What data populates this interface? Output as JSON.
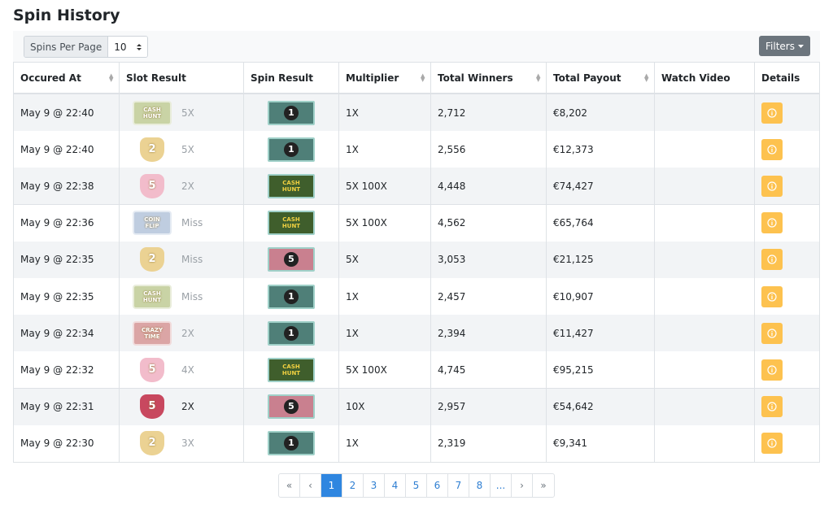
{
  "title": "Spin History",
  "toolbar": {
    "per_page_label": "Spins Per Page",
    "per_page_value": "10",
    "filters": "Filters"
  },
  "table": {
    "headers": [
      {
        "label": "Occured At",
        "sortable": true
      },
      {
        "label": "Slot Result",
        "sortable": false
      },
      {
        "label": "Spin Result",
        "sortable": false
      },
      {
        "label": "Multiplier",
        "sortable": true
      },
      {
        "label": "Total Winners",
        "sortable": true
      },
      {
        "label": "Total Payout",
        "sortable": true
      },
      {
        "label": "Watch Video",
        "sortable": false
      },
      {
        "label": "Details",
        "sortable": false
      }
    ],
    "rows": [
      {
        "occurred_at": "May 9 @ 22:40",
        "slot": "CASH HUNT",
        "slot_shape": "ticket",
        "slot_color": "#c9d3a5",
        "slot_multiplier": "5X",
        "slot_hit": false,
        "spin_result": "1",
        "spin_color": "#4f7f78",
        "multiplier": "1X",
        "total_winners": "2,712",
        "total_payout": "€8,202"
      },
      {
        "occurred_at": "May 9 @ 22:40",
        "slot": "2",
        "slot_shape": "shield",
        "slot_color": "#ebd293",
        "slot_multiplier": "5X",
        "slot_hit": false,
        "spin_result": "1",
        "spin_color": "#4f7f78",
        "multiplier": "1X",
        "total_winners": "2,556",
        "total_payout": "€12,373"
      },
      {
        "occurred_at": "May 9 @ 22:38",
        "slot": "5",
        "slot_shape": "shield",
        "slot_color": "#f2bccb",
        "slot_multiplier": "2X",
        "slot_hit": false,
        "spin_result": "CASH HUNT",
        "spin_color": "#3f5e2c",
        "multiplier": "5X 100X",
        "total_winners": "4,448",
        "total_payout": "€74,427"
      },
      {
        "occurred_at": "May 9 @ 22:36",
        "slot": "COIN FLIP",
        "slot_shape": "ticket",
        "slot_color": "#bfcde0",
        "slot_multiplier": "Miss",
        "slot_hit": false,
        "spin_result": "CASH HUNT",
        "spin_color": "#3f5e2c",
        "multiplier": "5X 100X",
        "total_winners": "4,562",
        "total_payout": "€65,764"
      },
      {
        "occurred_at": "May 9 @ 22:35",
        "slot": "2",
        "slot_shape": "shield",
        "slot_color": "#ebd293",
        "slot_multiplier": "Miss",
        "slot_hit": false,
        "spin_result": "5",
        "spin_color": "#c9808f",
        "multiplier": "5X",
        "total_winners": "3,053",
        "total_payout": "€21,125"
      },
      {
        "occurred_at": "May 9 @ 22:35",
        "slot": "CASH HUNT",
        "slot_shape": "ticket",
        "slot_color": "#c9d3a5",
        "slot_multiplier": "Miss",
        "slot_hit": false,
        "spin_result": "1",
        "spin_color": "#4f7f78",
        "multiplier": "1X",
        "total_winners": "2,457",
        "total_payout": "€10,907"
      },
      {
        "occurred_at": "May 9 @ 22:34",
        "slot": "CRAZY TIME",
        "slot_shape": "ticket",
        "slot_color": "#dba5a5",
        "slot_multiplier": "2X",
        "slot_hit": false,
        "spin_result": "1",
        "spin_color": "#4f7f78",
        "multiplier": "1X",
        "total_winners": "2,394",
        "total_payout": "€11,427"
      },
      {
        "occurred_at": "May 9 @ 22:32",
        "slot": "5",
        "slot_shape": "shield",
        "slot_color": "#f2bccb",
        "slot_multiplier": "4X",
        "slot_hit": false,
        "spin_result": "CASH HUNT",
        "spin_color": "#3f5e2c",
        "multiplier": "5X 100X",
        "total_winners": "4,745",
        "total_payout": "€95,215"
      },
      {
        "occurred_at": "May 9 @ 22:31",
        "slot": "5",
        "slot_shape": "shield",
        "slot_color": "#c8485f",
        "slot_multiplier": "2X",
        "slot_hit": true,
        "spin_result": "5",
        "spin_color": "#c9808f",
        "multiplier": "10X",
        "total_winners": "2,957",
        "total_payout": "€54,642"
      },
      {
        "occurred_at": "May 9 @ 22:30",
        "slot": "2",
        "slot_shape": "shield",
        "slot_color": "#ebd293",
        "slot_multiplier": "3X",
        "slot_hit": false,
        "spin_result": "1",
        "spin_color": "#4f7f78",
        "multiplier": "1X",
        "total_winners": "2,319",
        "total_payout": "€9,341"
      }
    ]
  },
  "pagination": {
    "items": [
      "«",
      "‹",
      "1",
      "2",
      "3",
      "4",
      "5",
      "6",
      "7",
      "8",
      "...",
      "›",
      "»"
    ],
    "active_index": 2
  }
}
